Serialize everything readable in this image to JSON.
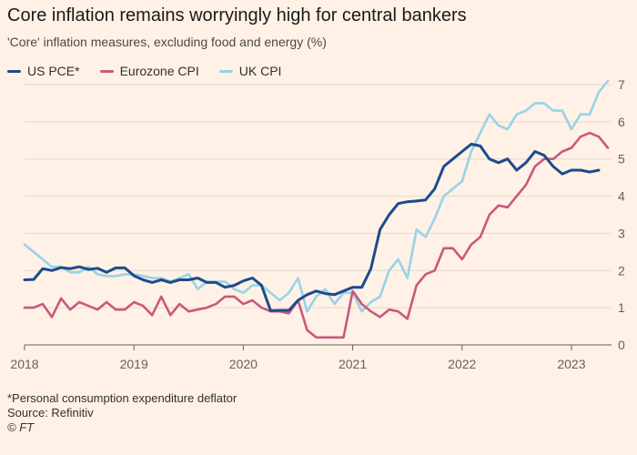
{
  "header": {
    "title": "Core inflation remains worryingly high for central bankers",
    "subtitle": "'Core' inflation measures, excluding food and energy (%)"
  },
  "footer": {
    "note": "*Personal consumption expenditure deflator",
    "source": "Source: Refinitiv",
    "credit": "© FT"
  },
  "colors": {
    "background": "#FFF1E5",
    "grid": "#E6D9CE",
    "axis": "#66605C",
    "text": "#66605C"
  },
  "chart_data": {
    "type": "line",
    "title": "Core inflation remains worryingly high for central bankers",
    "subtitle": "'Core' inflation measures, excluding food and energy (%)",
    "xlabel": "",
    "ylabel": "",
    "x_ticks": [
      "2018",
      "2019",
      "2020",
      "2021",
      "2022",
      "2023"
    ],
    "y_ticks": [
      0,
      1,
      2,
      3,
      4,
      5,
      6,
      7
    ],
    "xlim": [
      "2018-01",
      "2023-05"
    ],
    "ylim": [
      0,
      7
    ],
    "y_axis_position": "right",
    "grid": true,
    "legend_position": "top-left",
    "x": [
      "2018-01",
      "2018-02",
      "2018-03",
      "2018-04",
      "2018-05",
      "2018-06",
      "2018-07",
      "2018-08",
      "2018-09",
      "2018-10",
      "2018-11",
      "2018-12",
      "2019-01",
      "2019-02",
      "2019-03",
      "2019-04",
      "2019-05",
      "2019-06",
      "2019-07",
      "2019-08",
      "2019-09",
      "2019-10",
      "2019-11",
      "2019-12",
      "2020-01",
      "2020-02",
      "2020-03",
      "2020-04",
      "2020-05",
      "2020-06",
      "2020-07",
      "2020-08",
      "2020-09",
      "2020-10",
      "2020-11",
      "2020-12",
      "2021-01",
      "2021-02",
      "2021-03",
      "2021-04",
      "2021-05",
      "2021-06",
      "2021-07",
      "2021-08",
      "2021-09",
      "2021-10",
      "2021-11",
      "2021-12",
      "2022-01",
      "2022-02",
      "2022-03",
      "2022-04",
      "2022-05",
      "2022-06",
      "2022-07",
      "2022-08",
      "2022-09",
      "2022-10",
      "2022-11",
      "2022-12",
      "2023-01",
      "2023-02",
      "2023-03",
      "2023-04",
      "2023-05"
    ],
    "series": [
      {
        "name": "US PCE*",
        "color": "#1D4B8C",
        "values": [
          1.75,
          1.76,
          2.05,
          2.0,
          2.08,
          2.05,
          2.1,
          2.03,
          2.06,
          1.95,
          2.07,
          2.07,
          1.86,
          1.75,
          1.68,
          1.75,
          1.68,
          1.75,
          1.75,
          1.8,
          1.68,
          1.68,
          1.55,
          1.6,
          1.72,
          1.8,
          1.6,
          0.92,
          0.93,
          0.93,
          1.2,
          1.35,
          1.45,
          1.38,
          1.35,
          1.45,
          1.55,
          1.55,
          2.05,
          3.1,
          3.5,
          3.8,
          3.85,
          3.87,
          3.9,
          4.2,
          4.8,
          5.0,
          5.2,
          5.4,
          5.35,
          5.0,
          4.9,
          5.0,
          4.7,
          4.9,
          5.2,
          5.1,
          4.8,
          4.6,
          4.7,
          4.7,
          4.65,
          4.7,
          null
        ]
      },
      {
        "name": "Eurozone CPI",
        "color": "#C9587D",
        "values": [
          1.0,
          1.0,
          1.1,
          0.75,
          1.25,
          0.95,
          1.15,
          1.05,
          0.95,
          1.15,
          0.95,
          0.95,
          1.15,
          1.05,
          0.8,
          1.3,
          0.8,
          1.1,
          0.9,
          0.95,
          1.0,
          1.1,
          1.3,
          1.3,
          1.1,
          1.2,
          1.0,
          0.9,
          0.9,
          0.85,
          1.2,
          0.4,
          0.2,
          0.2,
          0.2,
          0.2,
          1.45,
          1.1,
          0.9,
          0.75,
          0.95,
          0.9,
          0.7,
          1.6,
          1.9,
          2.0,
          2.6,
          2.6,
          2.3,
          2.7,
          2.9,
          3.5,
          3.75,
          3.7,
          4.0,
          4.3,
          4.8,
          5.0,
          5.0,
          5.2,
          5.3,
          5.6,
          5.7,
          5.6,
          5.3
        ]
      },
      {
        "name": "UK CPI",
        "color": "#96D4E8",
        "values": [
          2.7,
          2.5,
          2.3,
          2.1,
          2.1,
          1.95,
          1.95,
          2.1,
          1.9,
          1.85,
          1.85,
          1.9,
          1.9,
          1.85,
          1.8,
          1.8,
          1.7,
          1.8,
          1.9,
          1.5,
          1.7,
          1.7,
          1.7,
          1.5,
          1.4,
          1.6,
          1.6,
          1.4,
          1.2,
          1.4,
          1.8,
          0.9,
          1.3,
          1.5,
          1.1,
          1.4,
          1.4,
          0.9,
          1.15,
          1.3,
          2.0,
          2.3,
          1.8,
          3.1,
          2.9,
          3.4,
          4.0,
          4.2,
          4.4,
          5.2,
          5.7,
          6.2,
          5.9,
          5.8,
          6.2,
          6.3,
          6.5,
          6.5,
          6.3,
          6.3,
          5.8,
          6.2,
          6.2,
          6.8,
          7.1
        ]
      }
    ]
  }
}
